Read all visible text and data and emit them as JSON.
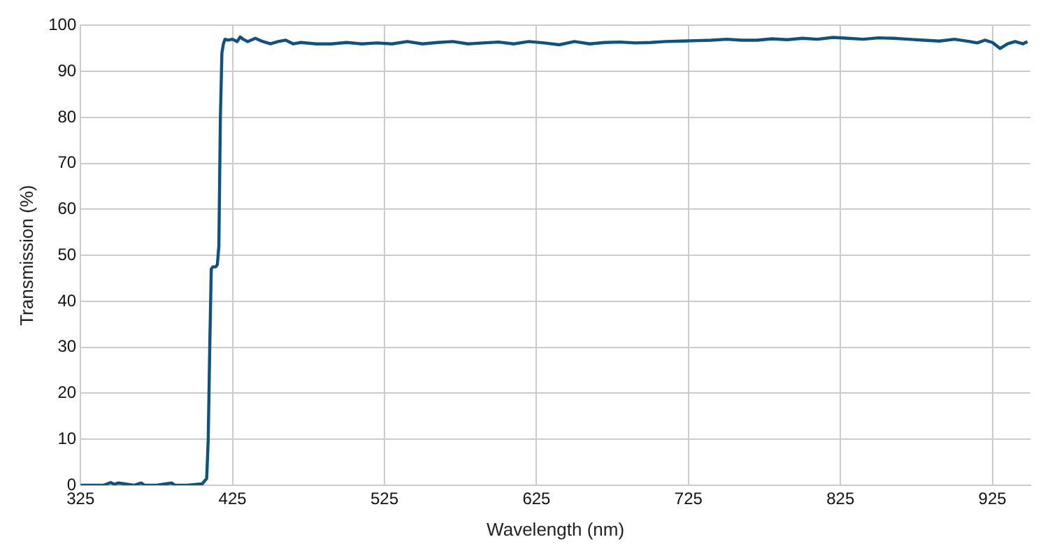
{
  "chart_data": {
    "type": "line",
    "xlabel": "Wavelength (nm)",
    "ylabel": "Transmission (%)",
    "xlim": [
      325,
      950
    ],
    "xticks": [
      325,
      425,
      525,
      625,
      725,
      825,
      925
    ],
    "ylim": [
      0,
      100
    ],
    "yticks": [
      0,
      10,
      20,
      30,
      40,
      50,
      60,
      70,
      80,
      90,
      100
    ],
    "grid": true,
    "legend": false,
    "marker": "none",
    "line_style": "solid",
    "series": [
      {
        "color": "#0d5282",
        "x": [
          325,
          340,
          345,
          347,
          350,
          360,
          365,
          367,
          375,
          385,
          387,
          395,
          405,
          408,
          409,
          410,
          411,
          412,
          413,
          414,
          415,
          416,
          417,
          418,
          419,
          420,
          422,
          425,
          428,
          430,
          432,
          435,
          440,
          445,
          450,
          455,
          460,
          465,
          470,
          480,
          490,
          500,
          510,
          520,
          530,
          540,
          550,
          560,
          570,
          580,
          590,
          600,
          610,
          620,
          630,
          640,
          650,
          660,
          670,
          680,
          690,
          700,
          710,
          720,
          730,
          740,
          750,
          760,
          770,
          780,
          790,
          800,
          810,
          820,
          830,
          840,
          850,
          860,
          870,
          880,
          890,
          900,
          910,
          915,
          920,
          925,
          930,
          935,
          940,
          945,
          948
        ],
        "values": [
          0,
          0,
          0.6,
          0.2,
          0.5,
          0,
          0.5,
          0,
          0,
          0.5,
          0,
          0,
          0.3,
          1.5,
          10,
          30,
          47,
          47.5,
          47.5,
          47.5,
          48,
          52,
          80,
          94,
          96,
          97,
          96.8,
          97,
          96.5,
          97.5,
          97,
          96.5,
          97.2,
          96.5,
          96,
          96.5,
          96.8,
          96,
          96.3,
          96,
          96,
          96.3,
          96,
          96.2,
          96,
          96.5,
          96,
          96.3,
          96.5,
          96,
          96.2,
          96.4,
          96,
          96.5,
          96.2,
          95.8,
          96.5,
          96,
          96.3,
          96.4,
          96.2,
          96.3,
          96.5,
          96.6,
          96.7,
          96.8,
          97,
          96.8,
          96.8,
          97.1,
          96.9,
          97.2,
          97,
          97.4,
          97.2,
          97,
          97.3,
          97.2,
          97,
          96.8,
          96.6,
          97,
          96.5,
          96.2,
          96.8,
          96.3,
          95,
          96,
          96.5,
          96,
          96.5
        ]
      }
    ]
  }
}
